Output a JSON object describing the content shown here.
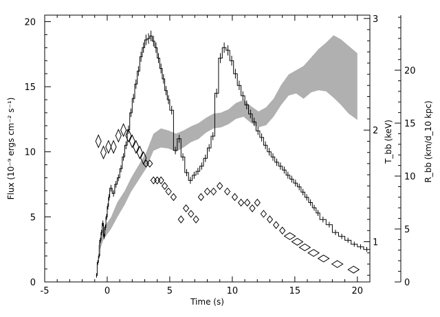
{
  "chart_data": {
    "type": "line",
    "title": "",
    "xlabel": "Time (s)",
    "xlim": [
      -5,
      21
    ],
    "x_ticks": [
      -5,
      0,
      5,
      10,
      15,
      20
    ],
    "y_left": {
      "label": "Flux (10⁻⁹ ergs cm⁻² s⁻¹)",
      "lim": [
        0,
        20.5
      ],
      "ticks": [
        0,
        5,
        10,
        15,
        20
      ]
    },
    "y_right_inner": {
      "label": "T_bb (keV)",
      "lim": [
        0.64,
        3.03
      ],
      "ticks": [
        1,
        2,
        3
      ]
    },
    "y_right_outer": {
      "label": "R_bb (km/d_10 kpc)",
      "lim": [
        0,
        25.2
      ],
      "ticks": [
        0,
        5,
        10,
        15,
        20
      ]
    },
    "series": [
      {
        "name": "",
        "kind": "histogram-flux",
        "axis": "left",
        "color": "#000000",
        "x": [
          -0.9,
          -0.8,
          -0.7,
          -0.6,
          -0.5,
          -0.4,
          -0.3,
          -0.2,
          -0.1,
          0.0,
          0.1,
          0.2,
          0.4,
          0.6,
          0.8,
          1.0,
          1.2,
          1.4,
          1.6,
          1.8,
          2.0,
          2.2,
          2.4,
          2.6,
          2.8,
          3.0,
          3.2,
          3.4,
          3.6,
          3.8,
          4.0,
          4.2,
          4.4,
          4.6,
          4.8,
          5.0,
          5.3,
          5.6,
          5.9,
          6.2,
          6.5,
          6.8,
          7.1,
          7.4,
          7.7,
          8.0,
          8.3,
          8.6,
          8.9,
          9.2,
          9.5,
          9.8,
          10.1,
          10.4,
          10.7,
          11.0,
          11.3,
          11.6,
          11.9,
          12.2,
          12.5,
          12.8,
          13.1,
          13.4,
          13.7,
          14.0,
          14.3,
          14.6,
          14.9,
          15.2,
          15.5,
          15.8,
          16.1,
          16.4,
          16.7,
          17.0,
          17.5,
          18.0,
          18.5,
          19.0,
          19.5,
          20.0,
          20.5
        ],
        "values": [
          0.5,
          1.5,
          2.0,
          3.2,
          3.8,
          4.5,
          3.5,
          4.2,
          5.0,
          5.8,
          6.5,
          7.2,
          6.8,
          7.5,
          8.0,
          8.7,
          9.6,
          10.5,
          11.7,
          13.0,
          14.1,
          15.2,
          16.2,
          17.3,
          18.0,
          18.6,
          18.7,
          18.9,
          18.5,
          18.0,
          17.2,
          16.4,
          15.6,
          14.7,
          14.0,
          13.2,
          10.1,
          11.0,
          9.6,
          8.4,
          7.8,
          8.2,
          8.5,
          8.9,
          9.5,
          10.3,
          11.2,
          14.5,
          17.2,
          18.0,
          17.8,
          17.0,
          16.0,
          15.1,
          14.3,
          13.6,
          12.9,
          12.3,
          11.6,
          11.1,
          10.5,
          10.0,
          9.6,
          9.2,
          8.9,
          8.6,
          8.2,
          7.9,
          7.6,
          7.3,
          6.9,
          6.5,
          6.1,
          5.7,
          5.3,
          4.8,
          4.4,
          3.8,
          3.5,
          3.2,
          2.9,
          2.7,
          2.5
        ]
      },
      {
        "name": "",
        "kind": "diamond-markers",
        "axis": "right_inner",
        "color": "#000000",
        "x": [
          -0.7,
          -0.3,
          0.1,
          0.5,
          0.9,
          1.3,
          1.7,
          2.0,
          2.3,
          2.6,
          2.9,
          3.1,
          3.4,
          3.7,
          4.0,
          4.3,
          4.6,
          4.9,
          5.3,
          5.9,
          6.3,
          6.7,
          7.1,
          7.5,
          8.0,
          8.5,
          9.0,
          9.6,
          10.2,
          10.7,
          11.2,
          11.6,
          12.0,
          12.5,
          13.0,
          13.5,
          14.0,
          14.6,
          15.2,
          15.8,
          16.5,
          17.3,
          18.4,
          19.7
        ],
        "values": [
          1.9,
          1.8,
          1.85,
          1.85,
          1.95,
          2.0,
          1.95,
          1.9,
          1.85,
          1.8,
          1.75,
          1.7,
          1.7,
          1.55,
          1.55,
          1.55,
          1.5,
          1.45,
          1.4,
          1.2,
          1.3,
          1.25,
          1.2,
          1.4,
          1.45,
          1.45,
          1.5,
          1.45,
          1.4,
          1.35,
          1.35,
          1.3,
          1.35,
          1.25,
          1.2,
          1.15,
          1.1,
          1.05,
          1.0,
          0.95,
          0.9,
          0.85,
          0.8,
          0.75
        ]
      },
      {
        "name": "",
        "kind": "shaded-band",
        "axis": "right_outer",
        "color": "#b0b0b0",
        "x": [
          -0.7,
          -0.3,
          0.3,
          0.8,
          1.4,
          1.9,
          2.5,
          3.1,
          3.7,
          4.3,
          4.9,
          5.5,
          6.1,
          6.7,
          7.3,
          7.9,
          8.5,
          9.1,
          9.7,
          10.3,
          10.9,
          11.5,
          12.1,
          12.7,
          13.3,
          13.9,
          14.5,
          15.1,
          15.7,
          16.3,
          16.9,
          17.5,
          18.1,
          18.7,
          19.3,
          20.0
        ],
        "lower": [
          2.6,
          4.0,
          5.0,
          6.1,
          7.3,
          8.5,
          9.6,
          10.7,
          12.4,
          12.7,
          12.6,
          12.3,
          12.7,
          13.2,
          13.5,
          14.1,
          14.5,
          14.6,
          14.9,
          15.4,
          15.6,
          15.0,
          14.6,
          14.8,
          15.6,
          16.7,
          17.6,
          17.8,
          17.3,
          17.9,
          18.1,
          18.0,
          17.4,
          16.7,
          15.9,
          15.3
        ],
        "upper": [
          3.4,
          5.1,
          6.1,
          7.5,
          8.6,
          9.8,
          11.0,
          12.2,
          14.0,
          14.5,
          14.3,
          14.0,
          14.3,
          14.7,
          15.0,
          15.5,
          15.9,
          16.0,
          16.3,
          16.9,
          17.2,
          16.6,
          16.1,
          16.5,
          17.3,
          18.6,
          19.6,
          20.0,
          20.4,
          21.2,
          22.0,
          22.6,
          23.3,
          22.9,
          22.3,
          21.6
        ]
      }
    ]
  }
}
